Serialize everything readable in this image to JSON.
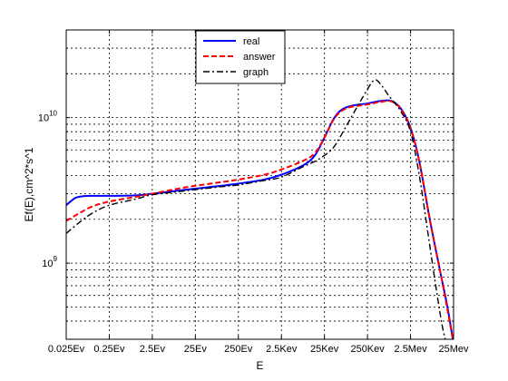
{
  "chart_data": {
    "type": "line",
    "xlabel": "E",
    "ylabel": "Ef(E),cm^2*s^1",
    "xscale": "log",
    "yscale": "log",
    "xlim": [
      0.025,
      25000000
    ],
    "ylim": [
      300000000,
      40000000000
    ],
    "x_ticks": [
      {
        "value": 0.025,
        "label": "0.025Ev"
      },
      {
        "value": 0.25,
        "label": "0.25Ev"
      },
      {
        "value": 2.5,
        "label": "2.5Ev"
      },
      {
        "value": 25,
        "label": "25Ev"
      },
      {
        "value": 250,
        "label": "250Ev"
      },
      {
        "value": 2500,
        "label": "2.5Kev"
      },
      {
        "value": 25000,
        "label": "25Kev"
      },
      {
        "value": 250000,
        "label": "250Kev"
      },
      {
        "value": 2500000,
        "label": "2.5Mev"
      },
      {
        "value": 25000000,
        "label": "25Mev"
      }
    ],
    "y_major_ticks": [
      {
        "value": 1000000000,
        "base": "10",
        "exp": "9"
      },
      {
        "value": 10000000000,
        "base": "10",
        "exp": "10"
      }
    ],
    "grid": true,
    "legend_position": "top-center",
    "series": [
      {
        "name": "real",
        "color": "#0000ff",
        "style": "solid",
        "points": [
          [
            0.025,
            2500000000
          ],
          [
            0.04,
            2800000000
          ],
          [
            0.06,
            2880000000
          ],
          [
            0.1,
            2900000000
          ],
          [
            0.25,
            2900000000
          ],
          [
            1,
            2920000000
          ],
          [
            2.5,
            3000000000
          ],
          [
            10,
            3150000000
          ],
          [
            25,
            3250000000
          ],
          [
            100,
            3400000000
          ],
          [
            250,
            3520000000
          ],
          [
            1000,
            3750000000
          ],
          [
            2500,
            4050000000
          ],
          [
            8000,
            4700000000
          ],
          [
            15000,
            5500000000
          ],
          [
            25000,
            7300000000
          ],
          [
            40000,
            9700000000
          ],
          [
            60000,
            11200000000
          ],
          [
            100000,
            12000000000
          ],
          [
            250000,
            12500000000
          ],
          [
            500000,
            13000000000
          ],
          [
            900000,
            13000000000
          ],
          [
            1500000,
            11500000000
          ],
          [
            2500000,
            8500000000
          ],
          [
            4000000,
            5000000000
          ],
          [
            7000000,
            2000000000
          ],
          [
            12000000,
            900000000
          ],
          [
            18000000,
            500000000
          ],
          [
            24000000,
            300000000
          ]
        ]
      },
      {
        "name": "answer",
        "color": "#ff0000",
        "style": "dashed",
        "points": [
          [
            0.025,
            1950000000
          ],
          [
            0.05,
            2200000000
          ],
          [
            0.1,
            2450000000
          ],
          [
            0.25,
            2650000000
          ],
          [
            1,
            2850000000
          ],
          [
            2.5,
            3000000000
          ],
          [
            10,
            3250000000
          ],
          [
            25,
            3400000000
          ],
          [
            100,
            3600000000
          ],
          [
            250,
            3750000000
          ],
          [
            1000,
            4050000000
          ],
          [
            2500,
            4400000000
          ],
          [
            8000,
            5050000000
          ],
          [
            15000,
            5700000000
          ],
          [
            25000,
            7300000000
          ],
          [
            40000,
            9600000000
          ],
          [
            60000,
            11000000000
          ],
          [
            100000,
            11800000000
          ],
          [
            250000,
            12300000000
          ],
          [
            500000,
            12800000000
          ],
          [
            900000,
            12900000000
          ],
          [
            1500000,
            11400000000
          ],
          [
            2500000,
            8400000000
          ],
          [
            4000000,
            5000000000
          ],
          [
            7000000,
            2000000000
          ],
          [
            12000000,
            900000000
          ],
          [
            18000000,
            480000000
          ],
          [
            24000000,
            300000000
          ]
        ]
      },
      {
        "name": "graph",
        "color": "#000000",
        "style": "dashdot",
        "points": [
          [
            0.025,
            1600000000
          ],
          [
            0.05,
            1900000000
          ],
          [
            0.1,
            2200000000
          ],
          [
            0.25,
            2500000000
          ],
          [
            1,
            2750000000
          ],
          [
            2.5,
            2950000000
          ],
          [
            10,
            3100000000
          ],
          [
            25,
            3200000000
          ],
          [
            100,
            3350000000
          ],
          [
            250,
            3450000000
          ],
          [
            1000,
            3700000000
          ],
          [
            2500,
            3900000000
          ],
          [
            8000,
            4600000000
          ],
          [
            15000,
            5000000000
          ],
          [
            25000,
            5500000000
          ],
          [
            40000,
            6200000000
          ],
          [
            60000,
            7500000000
          ],
          [
            100000,
            9800000000
          ],
          [
            200000,
            14000000000
          ],
          [
            350000,
            18000000000
          ],
          [
            500000,
            17000000000
          ],
          [
            800000,
            14000000000
          ],
          [
            1500000,
            11000000000
          ],
          [
            2500000,
            8000000000
          ],
          [
            4000000,
            4000000000
          ],
          [
            6000000,
            1800000000
          ],
          [
            9000000,
            800000000
          ],
          [
            13000000,
            400000000
          ],
          [
            16000000,
            300000000
          ]
        ]
      }
    ]
  }
}
